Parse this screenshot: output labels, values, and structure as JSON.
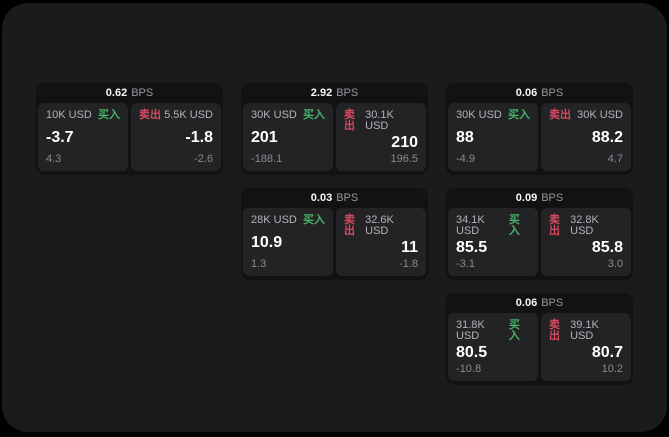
{
  "labels": {
    "buy": "买入",
    "sell": "卖出",
    "unit": "BPS"
  },
  "colors": {
    "container_bg": "#1b1b1d",
    "card_bg": "#121214",
    "panel_bg": "#232326",
    "buy_green": "#46b168",
    "sell_red": "#d64a5f",
    "label_gray": "#b3b3b8",
    "sub_gray": "#8a8a8f",
    "unit_gray": "#97979c"
  },
  "cards": [
    {
      "bps": "0.62",
      "buy": {
        "amount": "10K USD",
        "value": "-3.7",
        "sub": "4.3"
      },
      "sell": {
        "amount": "5.5K USD",
        "value": "-1.8",
        "sub": "-2.6"
      }
    },
    {
      "bps": "2.92",
      "buy": {
        "amount": "30K USD",
        "value": "201",
        "sub": "-188.1"
      },
      "sell": {
        "amount": "30.1K USD",
        "value": "210",
        "sub": "196.5"
      }
    },
    {
      "bps": "0.06",
      "buy": {
        "amount": "30K USD",
        "value": "88",
        "sub": "-4.9"
      },
      "sell": {
        "amount": "30K USD",
        "value": "88.2",
        "sub": "4.7"
      }
    },
    {
      "bps": "0.03",
      "buy": {
        "amount": "28K USD",
        "value": "10.9",
        "sub": "1.3"
      },
      "sell": {
        "amount": "32.6K USD",
        "value": "11",
        "sub": "-1.8"
      }
    },
    {
      "bps": "0.09",
      "buy": {
        "amount": "34.1K USD",
        "value": "85.5",
        "sub": "-3.1"
      },
      "sell": {
        "amount": "32.8K USD",
        "value": "85.8",
        "sub": "3.0"
      }
    },
    {
      "bps": "0.06",
      "buy": {
        "amount": "31.8K USD",
        "value": "80.5",
        "sub": "-10.8"
      },
      "sell": {
        "amount": "39.1K USD",
        "value": "80.7",
        "sub": "10.2"
      }
    }
  ]
}
